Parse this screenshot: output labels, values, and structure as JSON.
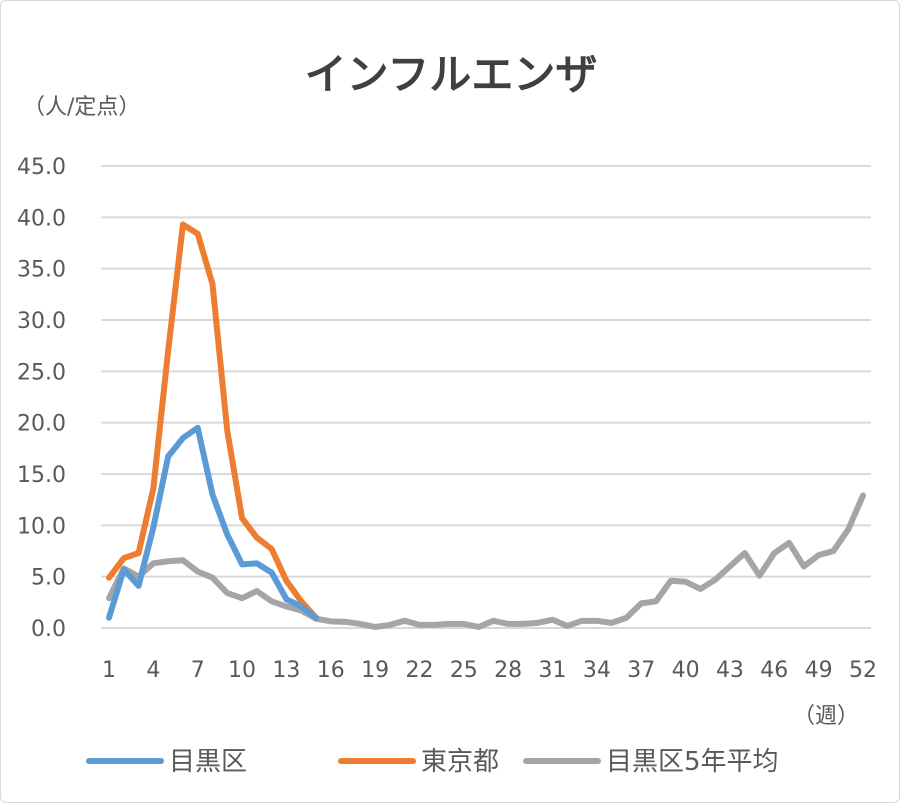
{
  "chart_data": {
    "type": "line",
    "title": "インフルエンザ",
    "ylabel": "（人/定点）",
    "xlabel": "（週）",
    "ylim": [
      0,
      45
    ],
    "yticks": [
      "0.0",
      "5.0",
      "10.0",
      "15.0",
      "20.0",
      "25.0",
      "30.0",
      "35.0",
      "40.0",
      "45.0"
    ],
    "xticks": [
      "1",
      "4",
      "7",
      "10",
      "13",
      "16",
      "19",
      "22",
      "25",
      "28",
      "31",
      "34",
      "37",
      "40",
      "43",
      "46",
      "49",
      "52"
    ],
    "xlim": [
      1,
      52
    ],
    "grid": true,
    "legend_position": "bottom",
    "series": [
      {
        "name": "目黒区",
        "color": "#5b9bd5",
        "values": [
          1.0,
          5.7,
          4.1,
          9.8,
          16.7,
          18.5,
          19.5,
          13.0,
          9.1,
          6.2,
          6.3,
          5.4,
          2.8,
          2.1,
          1.0
        ]
      },
      {
        "name": "東京都",
        "color": "#ed7d31",
        "values": [
          4.9,
          6.8,
          7.3,
          13.6,
          27.0,
          39.3,
          38.4,
          33.5,
          19.2,
          10.7,
          8.8,
          7.7,
          4.6,
          2.6,
          1.0
        ]
      },
      {
        "name": "目黒区5年平均",
        "color": "#a5a5a5",
        "values": [
          2.9,
          5.8,
          5.0,
          6.3,
          6.5,
          6.6,
          5.5,
          4.9,
          3.4,
          2.9,
          3.6,
          2.6,
          2.1,
          1.7,
          0.9,
          0.65,
          0.6,
          0.4,
          0.1,
          0.3,
          0.7,
          0.3,
          0.3,
          0.4,
          0.4,
          0.1,
          0.7,
          0.4,
          0.4,
          0.5,
          0.8,
          0.2,
          0.7,
          0.7,
          0.5,
          1.0,
          2.4,
          2.6,
          4.6,
          4.5,
          3.8,
          4.7,
          6.0,
          7.3,
          5.1,
          7.3,
          8.3,
          6.0,
          7.1,
          7.5,
          9.6,
          12.9
        ]
      }
    ]
  }
}
